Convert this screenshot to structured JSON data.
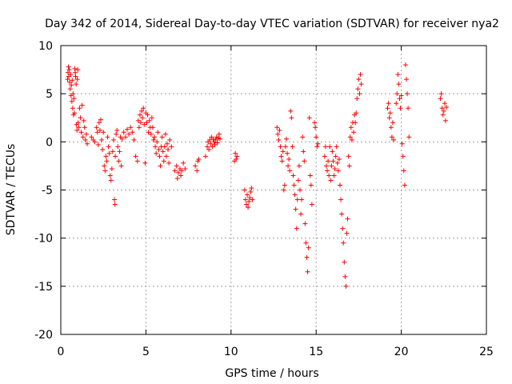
{
  "chart_data": {
    "type": "scatter",
    "title": "Day 342 of 2014, Sidereal Day-to-day VTEC variation (SDTVAR) for receiver nya2",
    "xlabel": "GPS time / hours",
    "ylabel": "SDTVAR / TECUs",
    "xlim": [
      0,
      25
    ],
    "ylim": [
      -20,
      10
    ],
    "xticks": [
      0,
      5,
      10,
      15,
      20,
      25
    ],
    "yticks": [
      -20,
      -15,
      -10,
      -5,
      0,
      5,
      10
    ],
    "grid": true,
    "marker": "+",
    "series": [
      {
        "name": "SDTVAR",
        "color": "#ff0000",
        "points": [
          [
            0.4,
            6.5
          ],
          [
            0.42,
            7.2
          ],
          [
            0.45,
            7.8
          ],
          [
            0.47,
            6.8
          ],
          [
            0.5,
            7.5
          ],
          [
            0.52,
            6.2
          ],
          [
            0.55,
            5.5
          ],
          [
            0.57,
            7.0
          ],
          [
            0.6,
            4.8
          ],
          [
            0.62,
            5.9
          ],
          [
            0.65,
            4.2
          ],
          [
            0.67,
            6.4
          ],
          [
            0.7,
            3.5
          ],
          [
            0.72,
            5.0
          ],
          [
            0.75,
            2.8
          ],
          [
            0.77,
            4.5
          ],
          [
            0.8,
            3.0
          ],
          [
            0.82,
            7.6
          ],
          [
            0.85,
            7.2
          ],
          [
            0.87,
            6.8
          ],
          [
            0.9,
            6.0
          ],
          [
            0.92,
            1.8
          ],
          [
            0.95,
            1.2
          ],
          [
            0.97,
            6.5
          ],
          [
            1.0,
            7.5
          ],
          [
            1.02,
            2.0
          ],
          [
            1.05,
            1.5
          ],
          [
            1.1,
            3.5
          ],
          [
            1.15,
            2.5
          ],
          [
            1.2,
            1.0
          ],
          [
            1.25,
            3.8
          ],
          [
            1.3,
            0.5
          ],
          [
            1.35,
            2.2
          ],
          [
            1.4,
            1.5
          ],
          [
            1.45,
            0.2
          ],
          [
            1.5,
            0.8
          ],
          [
            1.55,
            -0.2
          ],
          [
            1.8,
            0.5
          ],
          [
            1.9,
            0.2
          ],
          [
            2.0,
            0.0
          ],
          [
            2.1,
            1.5
          ],
          [
            2.15,
            1.0
          ],
          [
            2.2,
            -0.3
          ],
          [
            2.25,
            2.0
          ],
          [
            2.3,
            1.2
          ],
          [
            2.35,
            2.3
          ],
          [
            2.4,
            0.2
          ],
          [
            2.45,
            -0.8
          ],
          [
            2.5,
            1.0
          ],
          [
            2.55,
            -2.5
          ],
          [
            2.6,
            -3.0
          ],
          [
            2.65,
            -1.5
          ],
          [
            2.7,
            -2.0
          ],
          [
            2.75,
            0.5
          ],
          [
            2.8,
            -0.5
          ],
          [
            2.85,
            -1.2
          ],
          [
            2.9,
            -3.5
          ],
          [
            2.95,
            -4.0
          ],
          [
            3.0,
            -2.8
          ],
          [
            3.05,
            -1.0
          ],
          [
            3.1,
            0.2
          ],
          [
            3.15,
            -6.0
          ],
          [
            3.18,
            -6.5
          ],
          [
            3.2,
            -1.5
          ],
          [
            3.25,
            0.8
          ],
          [
            3.3,
            1.2
          ],
          [
            3.35,
            -0.5
          ],
          [
            3.4,
            -2.0
          ],
          [
            3.45,
            -1.0
          ],
          [
            3.5,
            0.5
          ],
          [
            3.55,
            -2.5
          ],
          [
            3.6,
            0.3
          ],
          [
            3.7,
            1.0
          ],
          [
            3.8,
            0.5
          ],
          [
            3.9,
            1.3
          ],
          [
            4.0,
            0.8
          ],
          [
            4.1,
            1.5
          ],
          [
            4.2,
            1.0
          ],
          [
            4.3,
            0.2
          ],
          [
            4.4,
            -1.5
          ],
          [
            4.5,
            -2.0
          ],
          [
            4.55,
            2.2
          ],
          [
            4.6,
            1.5
          ],
          [
            4.65,
            2.8
          ],
          [
            4.7,
            2.0
          ],
          [
            4.75,
            3.2
          ],
          [
            4.8,
            2.5
          ],
          [
            4.85,
            3.5
          ],
          [
            4.9,
            1.8
          ],
          [
            4.95,
            -2.2
          ],
          [
            5.0,
            3.0
          ],
          [
            5.05,
            2.0
          ],
          [
            5.1,
            2.8
          ],
          [
            5.15,
            1.0
          ],
          [
            5.2,
            2.2
          ],
          [
            5.25,
            1.5
          ],
          [
            5.3,
            0.8
          ],
          [
            5.35,
            2.5
          ],
          [
            5.4,
            1.5
          ],
          [
            5.45,
            0.2
          ],
          [
            5.5,
            0.5
          ],
          [
            5.55,
            -0.5
          ],
          [
            5.6,
            -1.2
          ],
          [
            5.65,
            0.0
          ],
          [
            5.7,
            1.0
          ],
          [
            5.75,
            -0.8
          ],
          [
            5.8,
            -1.5
          ],
          [
            5.85,
            -2.5
          ],
          [
            5.9,
            -0.5
          ],
          [
            5.95,
            0.5
          ],
          [
            6.0,
            -1.0
          ],
          [
            6.05,
            -2.0
          ],
          [
            6.1,
            -0.5
          ],
          [
            6.15,
            0.8
          ],
          [
            6.2,
            -1.5
          ],
          [
            6.25,
            -0.2
          ],
          [
            6.3,
            -0.8
          ],
          [
            6.35,
            -2.2
          ],
          [
            6.4,
            0.2
          ],
          [
            6.5,
            -0.5
          ],
          [
            6.7,
            -3.0
          ],
          [
            6.8,
            -2.5
          ],
          [
            6.85,
            -3.8
          ],
          [
            6.9,
            -3.2
          ],
          [
            7.0,
            -2.8
          ],
          [
            7.05,
            -3.5
          ],
          [
            7.1,
            -3.0
          ],
          [
            7.2,
            -2.2
          ],
          [
            7.3,
            -2.8
          ],
          [
            7.9,
            -2.5
          ],
          [
            8.0,
            -3.0
          ],
          [
            8.05,
            -2.0
          ],
          [
            8.1,
            -1.8
          ],
          [
            8.5,
            -1.5
          ],
          [
            8.6,
            -0.5
          ],
          [
            8.65,
            0.0
          ],
          [
            8.7,
            -0.8
          ],
          [
            8.75,
            0.2
          ],
          [
            8.8,
            -0.2
          ],
          [
            8.85,
            0.5
          ],
          [
            8.9,
            -0.5
          ],
          [
            8.95,
            0.3
          ],
          [
            9.0,
            0.0
          ],
          [
            9.05,
            -0.3
          ],
          [
            9.1,
            0.2
          ],
          [
            9.15,
            0.5
          ],
          [
            9.2,
            -0.1
          ],
          [
            9.25,
            0.4
          ],
          [
            9.3,
            0.8
          ],
          [
            9.35,
            0.3
          ],
          [
            10.2,
            -2.0
          ],
          [
            10.25,
            -1.2
          ],
          [
            10.3,
            -1.8
          ],
          [
            10.35,
            -1.5
          ],
          [
            10.8,
            -5.0
          ],
          [
            10.85,
            -6.0
          ],
          [
            10.9,
            -6.5
          ],
          [
            10.95,
            -5.5
          ],
          [
            11.0,
            -6.8
          ],
          [
            11.05,
            -6.2
          ],
          [
            11.1,
            -5.8
          ],
          [
            11.15,
            -5.2
          ],
          [
            11.2,
            -4.8
          ],
          [
            11.25,
            -6.0
          ],
          [
            12.7,
            1.5
          ],
          [
            12.75,
            0.8
          ],
          [
            12.8,
            0.2
          ],
          [
            12.85,
            1.2
          ],
          [
            12.9,
            -0.5
          ],
          [
            12.95,
            -1.5
          ],
          [
            13.0,
            -2.0
          ],
          [
            13.05,
            -1.0
          ],
          [
            13.1,
            -5.0
          ],
          [
            13.15,
            -4.5
          ],
          [
            13.2,
            -0.5
          ],
          [
            13.25,
            0.3
          ],
          [
            13.3,
            -1.2
          ],
          [
            13.35,
            -2.5
          ],
          [
            13.4,
            -1.8
          ],
          [
            13.45,
            -3.0
          ],
          [
            13.5,
            3.2
          ],
          [
            13.55,
            2.5
          ],
          [
            13.6,
            -0.5
          ],
          [
            13.65,
            -3.5
          ],
          [
            13.7,
            -4.5
          ],
          [
            13.75,
            -5.5
          ],
          [
            13.8,
            -7.0
          ],
          [
            13.85,
            -9.0
          ],
          [
            13.9,
            -6.0
          ],
          [
            13.95,
            -4.0
          ],
          [
            14.0,
            -2.5
          ],
          [
            14.05,
            -5.0
          ],
          [
            14.1,
            -7.5
          ],
          [
            14.15,
            -6.0
          ],
          [
            14.2,
            0.5
          ],
          [
            14.25,
            -1.0
          ],
          [
            14.3,
            -2.0
          ],
          [
            14.35,
            -8.5
          ],
          [
            14.4,
            -10.5
          ],
          [
            14.45,
            -12.0
          ],
          [
            14.5,
            -13.5
          ],
          [
            14.55,
            -11.0
          ],
          [
            14.6,
            2.5
          ],
          [
            14.65,
            -3.5
          ],
          [
            14.7,
            -4.5
          ],
          [
            14.75,
            -6.5
          ],
          [
            14.9,
            2.0
          ],
          [
            14.95,
            1.5
          ],
          [
            15.0,
            0.5
          ],
          [
            15.05,
            -0.5
          ],
          [
            15.1,
            -0.2
          ],
          [
            15.5,
            -1.5
          ],
          [
            15.55,
            -0.5
          ],
          [
            15.6,
            -2.5
          ],
          [
            15.65,
            -3.0
          ],
          [
            15.7,
            -2.0
          ],
          [
            15.75,
            -3.5
          ],
          [
            15.8,
            -0.5
          ],
          [
            15.85,
            -4.0
          ],
          [
            15.9,
            -2.5
          ],
          [
            15.95,
            -1.0
          ],
          [
            16.0,
            -2.0
          ],
          [
            16.05,
            -3.5
          ],
          [
            16.1,
            -2.8
          ],
          [
            16.15,
            -1.5
          ],
          [
            16.2,
            -0.5
          ],
          [
            16.25,
            -2.2
          ],
          [
            16.3,
            -3.0
          ],
          [
            16.35,
            -1.8
          ],
          [
            16.4,
            -4.5
          ],
          [
            16.45,
            -6.0
          ],
          [
            16.5,
            -7.5
          ],
          [
            16.55,
            -9.0
          ],
          [
            16.6,
            -10.5
          ],
          [
            16.65,
            -12.5
          ],
          [
            16.7,
            -14.0
          ],
          [
            16.75,
            -15.0
          ],
          [
            16.8,
            -9.5
          ],
          [
            16.85,
            -8.0
          ],
          [
            16.9,
            -1.5
          ],
          [
            16.95,
            -2.5
          ],
          [
            17.0,
            0.5
          ],
          [
            17.05,
            1.5
          ],
          [
            17.1,
            0.2
          ],
          [
            17.15,
            2.0
          ],
          [
            17.2,
            1.0
          ],
          [
            17.25,
            2.8
          ],
          [
            17.3,
            2.0
          ],
          [
            17.35,
            3.0
          ],
          [
            17.4,
            4.5
          ],
          [
            17.45,
            5.5
          ],
          [
            17.5,
            6.5
          ],
          [
            17.55,
            5.0
          ],
          [
            17.6,
            7.0
          ],
          [
            17.65,
            6.0
          ],
          [
            19.2,
            3.5
          ],
          [
            19.25,
            4.0
          ],
          [
            19.3,
            2.5
          ],
          [
            19.35,
            3.0
          ],
          [
            19.4,
            1.5
          ],
          [
            19.45,
            0.5
          ],
          [
            19.5,
            2.0
          ],
          [
            19.55,
            0.2
          ],
          [
            19.7,
            4.0
          ],
          [
            19.75,
            5.0
          ],
          [
            19.8,
            7.0
          ],
          [
            19.85,
            6.0
          ],
          [
            19.9,
            4.5
          ],
          [
            19.95,
            3.5
          ],
          [
            20.0,
            4.8
          ],
          [
            20.05,
            -0.2
          ],
          [
            20.1,
            -1.5
          ],
          [
            20.15,
            -3.0
          ],
          [
            20.2,
            -4.5
          ],
          [
            20.25,
            8.0
          ],
          [
            20.3,
            6.5
          ],
          [
            20.35,
            5.0
          ],
          [
            20.4,
            3.5
          ],
          [
            20.45,
            0.5
          ],
          [
            22.3,
            4.5
          ],
          [
            22.35,
            5.0
          ],
          [
            22.4,
            3.5
          ],
          [
            22.45,
            2.8
          ],
          [
            22.5,
            3.2
          ],
          [
            22.55,
            4.0
          ],
          [
            22.6,
            2.2
          ],
          [
            22.65,
            3.6
          ]
        ]
      }
    ]
  }
}
